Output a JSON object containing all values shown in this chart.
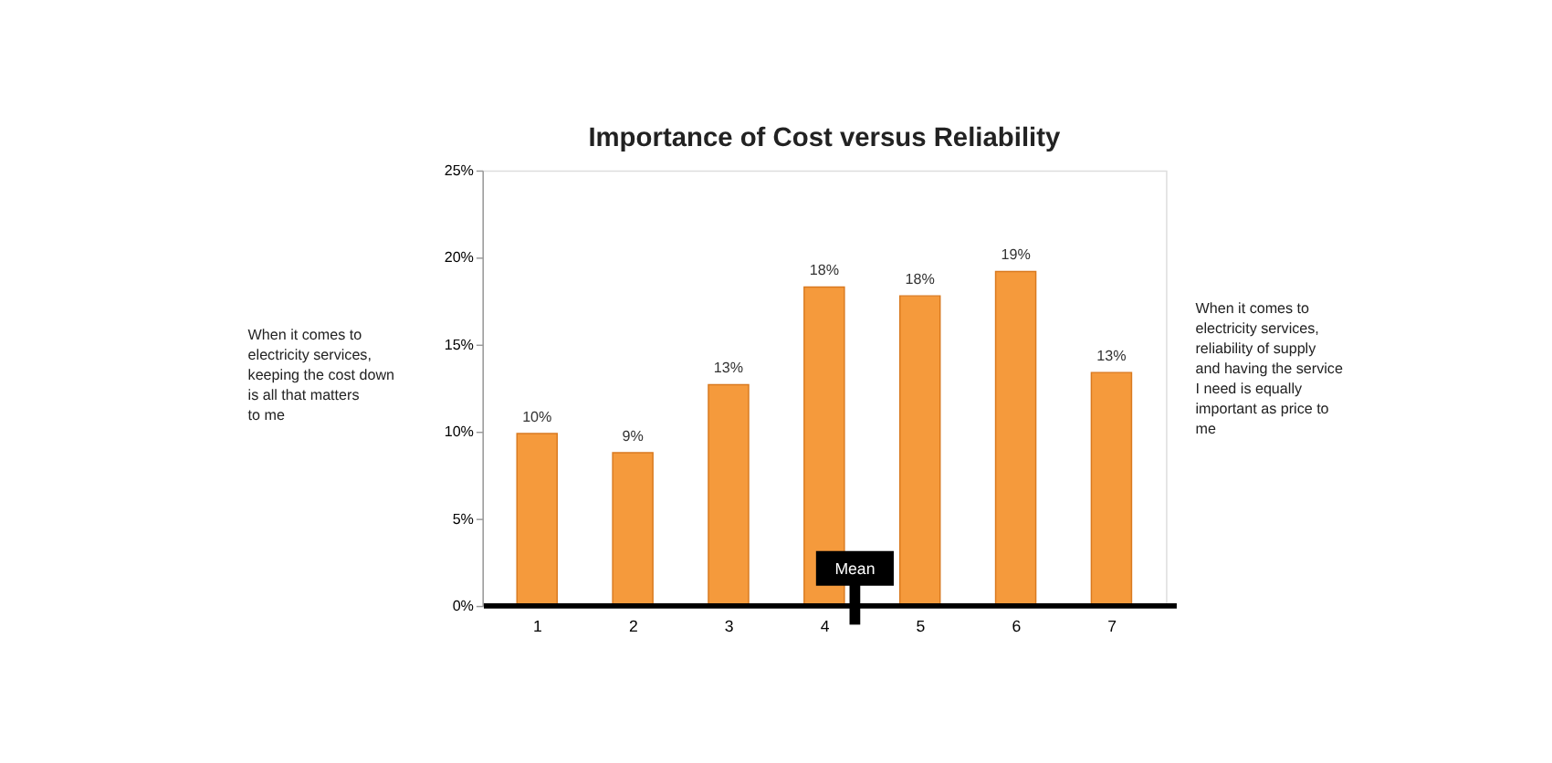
{
  "chart_data": {
    "type": "bar",
    "title": "Importance of Cost versus Reliability",
    "x": [
      1,
      2,
      3,
      4,
      5,
      6,
      7
    ],
    "xlim": [
      0.5,
      7.5
    ],
    "xticks": [
      1,
      2,
      3,
      4,
      5,
      6,
      7
    ],
    "values": [
      9.9,
      8.8,
      12.7,
      18.3,
      17.8,
      19.2,
      13.4
    ],
    "value_labels": [
      "10%",
      "9%",
      "13%",
      "18%",
      "18%",
      "19%",
      "13%"
    ],
    "color": "#f59a3c",
    "ylim": [
      0,
      25
    ],
    "yticks": [
      {
        "value": 0,
        "label": "0%"
      },
      {
        "value": 5,
        "label": "5%"
      },
      {
        "value": 10,
        "label": "10%"
      },
      {
        "value": 15,
        "label": "15%"
      },
      {
        "value": 20,
        "label": "20%"
      },
      {
        "value": 25,
        "label": "25%"
      }
    ],
    "ref_lines": [
      {
        "axis": "x",
        "value": 4.32,
        "label": "Mean",
        "color": "#000000"
      }
    ],
    "annotations": [
      "When it comes to electricity services, keeping the cost down is all that matters to me",
      "When it comes to electricity services, reliability of supply and having the service I need is equally important as price to me"
    ],
    "grid": false
  }
}
